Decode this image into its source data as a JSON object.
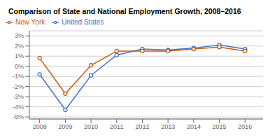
{
  "chart_data": {
    "type": "line",
    "title": "Comparison of State and National Employment Growth, 2008–2016",
    "x": [
      2008,
      2009,
      2010,
      2011,
      2012,
      2013,
      2014,
      2015,
      2016
    ],
    "series": [
      {
        "name": "United States",
        "color": "#4472c4",
        "marker": "circle",
        "values": [
          -0.008,
          -0.043,
          -0.009,
          0.011,
          0.017,
          0.016,
          0.018,
          0.021,
          0.017
        ]
      },
      {
        "name": "New York",
        "color": "#c55a11",
        "marker": "circle",
        "values": [
          0.008,
          -0.027,
          0.001,
          0.015,
          0.015,
          0.015,
          0.017,
          0.019,
          0.015
        ]
      }
    ],
    "xlim": [
      2007.6,
      2016.7
    ],
    "xticks": [
      2008,
      2009,
      2010,
      2011,
      2012,
      2013,
      2014,
      2015,
      2016
    ],
    "ylim": [
      -0.052,
      0.035
    ],
    "yticks": [
      {
        "value": -0.05,
        "label": "-5%"
      },
      {
        "value": -0.04,
        "label": "-4%"
      },
      {
        "value": -0.03,
        "label": "-3%"
      },
      {
        "value": -0.02,
        "label": "-2%"
      },
      {
        "value": -0.01,
        "label": "-1%"
      },
      {
        "value": 0.0,
        "label": "0%"
      },
      {
        "value": 0.01,
        "label": "1%"
      },
      {
        "value": 0.02,
        "label": "2%"
      },
      {
        "value": 0.03,
        "label": "3%"
      }
    ],
    "grid": true,
    "legend": "upper left"
  }
}
